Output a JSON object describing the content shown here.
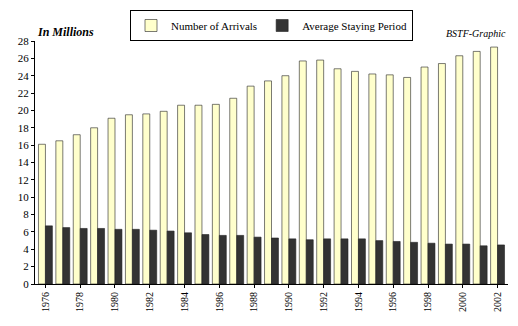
{
  "chart_data": {
    "type": "bar",
    "annotations": [
      "In Millions",
      "BSTF-Graphic"
    ],
    "categories": [
      "1976",
      null,
      "1978",
      null,
      "1980",
      null,
      "1982",
      null,
      "1984",
      null,
      "1986",
      null,
      "1988",
      null,
      "1990",
      null,
      "1992",
      null,
      "1994",
      null,
      "1996",
      null,
      "1998",
      null,
      "2000",
      null,
      "2002"
    ],
    "series": [
      {
        "name": "Number of Arrivals",
        "color": "#ffffcc",
        "values": [
          16.1,
          16.5,
          17.2,
          18.0,
          19.1,
          19.5,
          19.6,
          19.9,
          20.6,
          20.6,
          20.7,
          21.4,
          22.8,
          23.4,
          24.0,
          25.7,
          25.8,
          24.8,
          24.5,
          24.2,
          24.1,
          23.8,
          25.0,
          25.4,
          26.3,
          26.8,
          27.3
        ]
      },
      {
        "name": "Average Staying Period",
        "color": "#333333",
        "values": [
          6.7,
          6.5,
          6.4,
          6.4,
          6.3,
          6.3,
          6.2,
          6.1,
          5.9,
          5.7,
          5.6,
          5.6,
          5.4,
          5.3,
          5.2,
          5.1,
          5.2,
          5.2,
          5.2,
          5.0,
          4.9,
          4.8,
          4.7,
          4.6,
          4.6,
          4.4,
          4.5
        ]
      }
    ],
    "ylim": [
      0,
      28
    ],
    "yticks": [
      0,
      2,
      4,
      6,
      8,
      10,
      12,
      14,
      16,
      18,
      20,
      22,
      24,
      26,
      28
    ],
    "grid": false,
    "legend": "top"
  }
}
